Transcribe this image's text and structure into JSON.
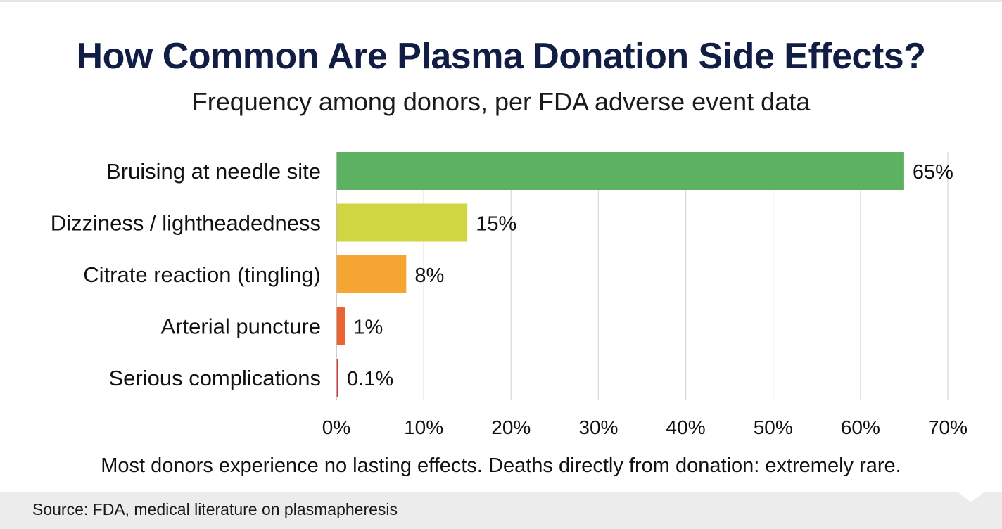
{
  "header": {
    "title": "How Common Are Plasma Donation Side Effects?",
    "subtitle": "Frequency among donors, per FDA adverse event data"
  },
  "note": "Most donors experience no lasting effects. Deaths directly from donation: extremely rare.",
  "footer": {
    "source": "Source: FDA, medical literature on plasmapheresis"
  },
  "chart_data": {
    "type": "bar",
    "orientation": "horizontal",
    "title": "How Common Are Plasma Donation Side Effects?",
    "subtitle": "Frequency among donors, per FDA adverse event data",
    "categories": [
      "Bruising at needle site",
      "Dizziness / lightheadedness",
      "Citrate reaction (tingling)",
      "Arterial puncture",
      "Serious complications"
    ],
    "values": [
      65,
      15,
      8,
      1,
      0.1
    ],
    "value_labels": [
      "65%",
      "15%",
      "8%",
      "1%",
      "0.1%"
    ],
    "colors": [
      "#5db262",
      "#cfd641",
      "#f5a532",
      "#ea6332",
      "#cf3a37"
    ],
    "xlim": [
      0,
      70
    ],
    "xticks": [
      0,
      10,
      20,
      30,
      40,
      50,
      60,
      70
    ],
    "xtick_labels": [
      "0%",
      "10%",
      "20%",
      "30%",
      "40%",
      "50%",
      "60%",
      "70%"
    ],
    "xlabel": "",
    "ylabel": "",
    "grid": true,
    "legend": "none"
  }
}
